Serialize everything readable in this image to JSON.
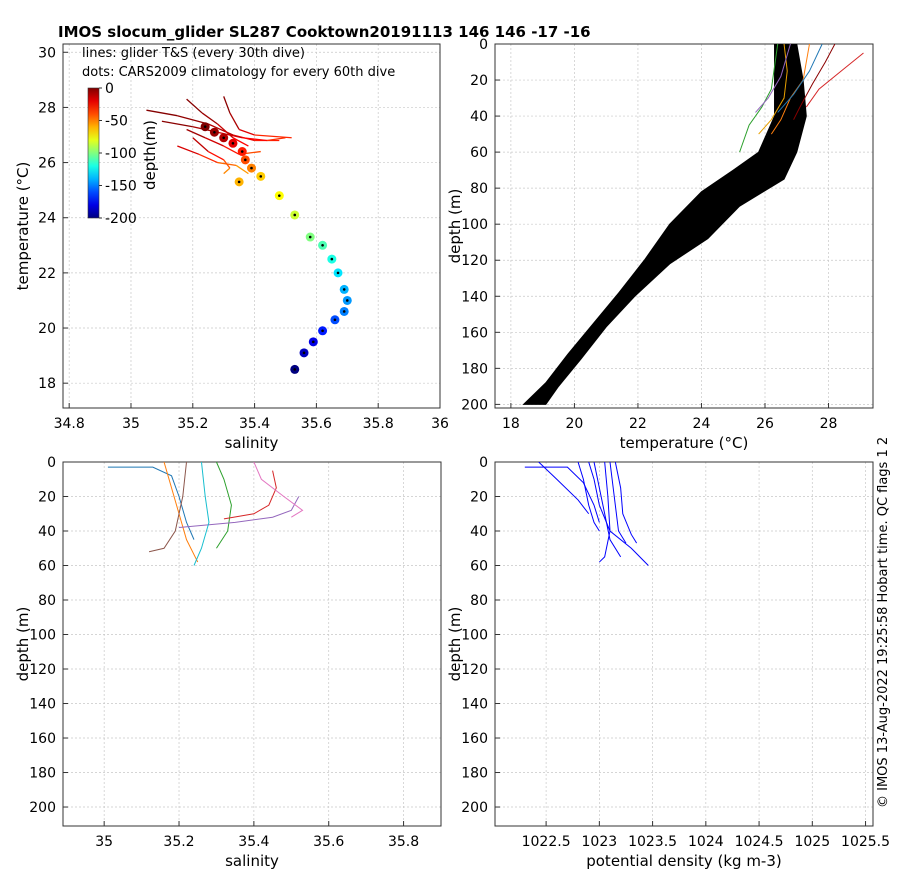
{
  "page": {
    "title": "IMOS slocum_glider SL287 Cooktown20191113 146  146  -17  -16",
    "side_text": "© IMOS 13-Aug-2022 19:25:58 Hobart time. QC flags 1  2"
  },
  "colors": {
    "glider_dense": "#000000",
    "density_lines": "#0000ff"
  },
  "chart_data": [
    {
      "id": "ts",
      "type": "scatter",
      "xlabel": "salinity",
      "ylabel": "temperature (°C)",
      "xlim": [
        34.78,
        36
      ],
      "ylim": [
        17.1,
        30.3
      ],
      "xticks": [
        34.8,
        35,
        35.2,
        35.4,
        35.6,
        35.8,
        36
      ],
      "yticks": [
        18,
        20,
        22,
        24,
        26,
        28,
        30
      ],
      "grid": true,
      "annotations": [
        "lines: glider T&S (every 30th dive)",
        "dots: CARS2009 climatology for every 60th dive"
      ],
      "colorbar": {
        "label": "depth(m)",
        "ticks": [
          0,
          -50,
          -100,
          -150,
          -200
        ],
        "range": [
          -200,
          0
        ],
        "colormap": "jet"
      },
      "climatology": [
        {
          "s": 35.24,
          "t": 27.3,
          "d": 0
        },
        {
          "s": 35.27,
          "t": 27.1,
          "d": -5
        },
        {
          "s": 35.3,
          "t": 26.9,
          "d": -10
        },
        {
          "s": 35.33,
          "t": 26.7,
          "d": -20
        },
        {
          "s": 35.36,
          "t": 26.4,
          "d": -30
        },
        {
          "s": 35.37,
          "t": 26.1,
          "d": -40
        },
        {
          "s": 35.39,
          "t": 25.8,
          "d": -50
        },
        {
          "s": 35.35,
          "t": 25.3,
          "d": -60
        },
        {
          "s": 35.42,
          "t": 25.5,
          "d": -65
        },
        {
          "s": 35.48,
          "t": 24.8,
          "d": -75
        },
        {
          "s": 35.53,
          "t": 24.1,
          "d": -85
        },
        {
          "s": 35.58,
          "t": 23.3,
          "d": -100
        },
        {
          "s": 35.62,
          "t": 23.0,
          "d": -110
        },
        {
          "s": 35.65,
          "t": 22.5,
          "d": -120
        },
        {
          "s": 35.67,
          "t": 22.0,
          "d": -130
        },
        {
          "s": 35.69,
          "t": 21.4,
          "d": -140
        },
        {
          "s": 35.7,
          "t": 21.0,
          "d": -145
        },
        {
          "s": 35.69,
          "t": 20.6,
          "d": -150
        },
        {
          "s": 35.66,
          "t": 20.3,
          "d": -160
        },
        {
          "s": 35.62,
          "t": 19.9,
          "d": -170
        },
        {
          "s": 35.59,
          "t": 19.5,
          "d": -180
        },
        {
          "s": 35.56,
          "t": 19.1,
          "d": -188
        },
        {
          "s": 35.53,
          "t": 18.5,
          "d": -200
        }
      ],
      "glider_ts": [
        [
          [
            35.05,
            27.9,
            0
          ],
          [
            35.15,
            27.7,
            -2
          ],
          [
            35.25,
            27.4,
            -5
          ],
          [
            35.33,
            27.0,
            -15
          ],
          [
            35.4,
            26.8,
            -25
          ],
          [
            35.48,
            26.8,
            -35
          ]
        ],
        [
          [
            35.18,
            28.3,
            0
          ],
          [
            35.23,
            27.8,
            -3
          ],
          [
            35.28,
            27.4,
            -8
          ],
          [
            35.33,
            26.9,
            -20
          ],
          [
            35.38,
            26.6,
            -30
          ]
        ],
        [
          [
            35.3,
            28.4,
            0
          ],
          [
            35.32,
            27.8,
            -5
          ],
          [
            35.35,
            27.2,
            -12
          ],
          [
            35.4,
            27.0,
            -25
          ],
          [
            35.52,
            26.9,
            -40
          ]
        ],
        [
          [
            35.15,
            26.6,
            -10
          ],
          [
            35.22,
            26.3,
            -25
          ],
          [
            35.28,
            26.0,
            -40
          ],
          [
            35.34,
            25.9,
            -50
          ],
          [
            35.38,
            25.6,
            -60
          ]
        ],
        [
          [
            35.18,
            27.2,
            -3
          ],
          [
            35.24,
            26.9,
            -10
          ],
          [
            35.3,
            26.6,
            -22
          ],
          [
            35.35,
            26.3,
            -35
          ],
          [
            35.42,
            26.4,
            -45
          ]
        ],
        [
          [
            35.1,
            27.5,
            0
          ],
          [
            35.2,
            27.3,
            -4
          ],
          [
            35.28,
            27.1,
            -12
          ],
          [
            35.36,
            26.9,
            -20
          ],
          [
            35.44,
            26.8,
            -30
          ],
          [
            35.5,
            26.9,
            -38
          ]
        ],
        [
          [
            35.2,
            26.9,
            -5
          ],
          [
            35.25,
            26.4,
            -20
          ],
          [
            35.3,
            26.1,
            -35
          ],
          [
            35.32,
            25.8,
            -48
          ],
          [
            35.3,
            25.6,
            -55
          ]
        ]
      ]
    },
    {
      "id": "tz",
      "type": "line",
      "xlabel": "temperature (°C)",
      "ylabel": "depth (m)",
      "xlim": [
        17.5,
        29.4
      ],
      "ylim": [
        0,
        202
      ],
      "y_reversed": true,
      "xticks": [
        18,
        20,
        22,
        24,
        26,
        28
      ],
      "yticks": [
        0,
        20,
        40,
        60,
        80,
        100,
        120,
        140,
        160,
        180,
        200
      ],
      "grid": true,
      "climatology_band": {
        "left": [
          [
            26.3,
            0
          ],
          [
            26.3,
            20
          ],
          [
            26.3,
            40
          ],
          [
            25.8,
            60
          ],
          [
            25.0,
            70
          ],
          [
            24.0,
            82
          ],
          [
            23.0,
            100
          ],
          [
            22.2,
            120
          ],
          [
            21.4,
            138
          ],
          [
            20.6,
            155
          ],
          [
            19.8,
            172
          ],
          [
            19.1,
            188
          ],
          [
            18.4,
            200
          ]
        ],
        "right": [
          [
            27.0,
            0
          ],
          [
            27.2,
            20
          ],
          [
            27.3,
            40
          ],
          [
            27.0,
            60
          ],
          [
            26.6,
            75
          ],
          [
            25.2,
            90
          ],
          [
            24.2,
            108
          ],
          [
            23.0,
            122
          ],
          [
            21.9,
            140
          ],
          [
            21.0,
            157
          ],
          [
            20.2,
            175
          ],
          [
            19.5,
            190
          ],
          [
            19.1,
            200
          ]
        ]
      },
      "glider_profiles": [
        [
          [
            26.6,
            0
          ],
          [
            26.7,
            15
          ],
          [
            26.6,
            30
          ],
          [
            26.2,
            42
          ],
          [
            25.8,
            50
          ]
        ],
        [
          [
            28.2,
            0
          ],
          [
            27.9,
            10
          ],
          [
            27.5,
            22
          ],
          [
            27.1,
            35
          ],
          [
            26.9,
            42
          ]
        ],
        [
          [
            29.1,
            5
          ],
          [
            28.4,
            15
          ],
          [
            27.7,
            25
          ],
          [
            27.3,
            35
          ]
        ],
        [
          [
            27.4,
            0
          ],
          [
            27.2,
            20
          ],
          [
            26.8,
            30
          ],
          [
            26.5,
            42
          ],
          [
            26.2,
            50
          ]
        ],
        [
          [
            26.4,
            0
          ],
          [
            26.2,
            25
          ],
          [
            25.9,
            35
          ],
          [
            25.5,
            45
          ],
          [
            25.2,
            60
          ]
        ],
        [
          [
            27.8,
            0
          ],
          [
            27.4,
            15
          ],
          [
            26.9,
            28
          ],
          [
            26.4,
            38
          ]
        ],
        [
          [
            26.8,
            0
          ],
          [
            26.5,
            18
          ],
          [
            26.1,
            30
          ],
          [
            25.7,
            38
          ]
        ]
      ]
    },
    {
      "id": "sz",
      "type": "line",
      "xlabel": "salinity",
      "ylabel": "depth (m)",
      "xlim": [
        34.89,
        35.9
      ],
      "ylim": [
        0,
        211
      ],
      "y_reversed": true,
      "xticks": [
        35,
        35.2,
        35.4,
        35.6,
        35.8
      ],
      "yticks": [
        0,
        20,
        40,
        60,
        80,
        100,
        120,
        140,
        160,
        180,
        200
      ],
      "grid": true,
      "glider_profiles": [
        [
          [
            35.01,
            3
          ],
          [
            35.13,
            3
          ],
          [
            35.18,
            8
          ],
          [
            35.2,
            20
          ],
          [
            35.22,
            35
          ],
          [
            35.24,
            45
          ]
        ],
        [
          [
            35.16,
            0
          ],
          [
            35.18,
            15
          ],
          [
            35.2,
            30
          ],
          [
            35.22,
            45
          ],
          [
            35.25,
            58
          ]
        ],
        [
          [
            35.3,
            0
          ],
          [
            35.32,
            10
          ],
          [
            35.34,
            25
          ],
          [
            35.33,
            40
          ],
          [
            35.3,
            50
          ]
        ],
        [
          [
            35.45,
            5
          ],
          [
            35.46,
            15
          ],
          [
            35.44,
            25
          ],
          [
            35.4,
            30
          ],
          [
            35.32,
            33
          ]
        ],
        [
          [
            35.52,
            20
          ],
          [
            35.5,
            28
          ],
          [
            35.45,
            32
          ],
          [
            35.35,
            35
          ],
          [
            35.2,
            38
          ]
        ],
        [
          [
            35.22,
            0
          ],
          [
            35.21,
            20
          ],
          [
            35.19,
            40
          ],
          [
            35.16,
            50
          ],
          [
            35.12,
            52
          ]
        ],
        [
          [
            35.4,
            0
          ],
          [
            35.42,
            10
          ],
          [
            35.48,
            20
          ],
          [
            35.53,
            28
          ],
          [
            35.5,
            32
          ]
        ],
        [
          [
            35.26,
            0
          ],
          [
            35.27,
            20
          ],
          [
            35.28,
            35
          ],
          [
            35.26,
            50
          ],
          [
            35.24,
            60
          ]
        ]
      ]
    },
    {
      "id": "rz",
      "type": "line",
      "xlabel": "potential density (kg m-3)",
      "ylabel": "depth (m)",
      "xlim": [
        1022.02,
        1025.57
      ],
      "ylim": [
        0,
        211
      ],
      "y_reversed": true,
      "xticks": [
        1022.5,
        1023,
        1023.5,
        1024,
        1024.5,
        1025,
        1025.5
      ],
      "grid": true,
      "glider_profiles": [
        [
          [
            1022.43,
            0
          ],
          [
            1022.6,
            10
          ],
          [
            1022.8,
            22
          ],
          [
            1022.9,
            30
          ]
        ],
        [
          [
            1022.3,
            3
          ],
          [
            1022.7,
            3
          ],
          [
            1022.85,
            12
          ],
          [
            1022.95,
            25
          ],
          [
            1023.0,
            35
          ]
        ],
        [
          [
            1022.9,
            0
          ],
          [
            1022.95,
            10
          ],
          [
            1023.0,
            25
          ],
          [
            1023.1,
            40
          ],
          [
            1023.3,
            50
          ],
          [
            1023.46,
            60
          ]
        ],
        [
          [
            1022.95,
            0
          ],
          [
            1023.0,
            15
          ],
          [
            1023.05,
            30
          ],
          [
            1023.1,
            45
          ],
          [
            1023.2,
            55
          ]
        ],
        [
          [
            1023.1,
            0
          ],
          [
            1023.12,
            10
          ],
          [
            1023.15,
            25
          ],
          [
            1023.18,
            40
          ],
          [
            1023.25,
            47
          ]
        ],
        [
          [
            1023.15,
            0
          ],
          [
            1023.2,
            15
          ],
          [
            1023.22,
            30
          ],
          [
            1023.3,
            42
          ],
          [
            1023.35,
            47
          ]
        ],
        [
          [
            1022.8,
            0
          ],
          [
            1022.85,
            10
          ],
          [
            1022.9,
            25
          ],
          [
            1022.95,
            35
          ],
          [
            1023.0,
            40
          ]
        ],
        [
          [
            1023.05,
            0
          ],
          [
            1023.08,
            20
          ],
          [
            1023.1,
            40
          ],
          [
            1023.05,
            55
          ],
          [
            1023.0,
            58
          ]
        ]
      ]
    }
  ]
}
